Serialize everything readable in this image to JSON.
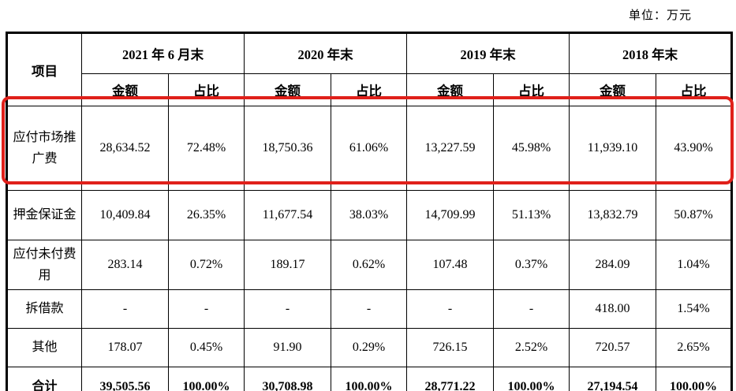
{
  "unit_label": "单位：万元",
  "highlight": {
    "color": "#e0201a",
    "highlighted_row": "应付市场推广费"
  },
  "table": {
    "item_header": "项目",
    "periods": [
      "2021 年 6 月末",
      "2020 年末",
      "2019 年末",
      "2018 年末"
    ],
    "sub_headers": [
      "金额",
      "占比"
    ],
    "rows": [
      {
        "label": "应付市场推广费",
        "highlighted": true,
        "bold": false,
        "values": [
          "28,634.52",
          "72.48%",
          "18,750.36",
          "61.06%",
          "13,227.59",
          "45.98%",
          "11,939.10",
          "43.90%"
        ]
      },
      {
        "label": "押金保证金",
        "highlighted": false,
        "bold": false,
        "values": [
          "10,409.84",
          "26.35%",
          "11,677.54",
          "38.03%",
          "14,709.99",
          "51.13%",
          "13,832.79",
          "50.87%"
        ]
      },
      {
        "label": "应付未付费用",
        "highlighted": false,
        "bold": false,
        "values": [
          "283.14",
          "0.72%",
          "189.17",
          "0.62%",
          "107.48",
          "0.37%",
          "284.09",
          "1.04%"
        ]
      },
      {
        "label": "拆借款",
        "highlighted": false,
        "bold": false,
        "values": [
          "-",
          "-",
          "-",
          "-",
          "-",
          "-",
          "418.00",
          "1.54%"
        ]
      },
      {
        "label": "其他",
        "highlighted": false,
        "bold": false,
        "values": [
          "178.07",
          "0.45%",
          "91.90",
          "0.29%",
          "726.15",
          "2.52%",
          "720.57",
          "2.65%"
        ]
      },
      {
        "label": "合计",
        "highlighted": false,
        "bold": true,
        "values": [
          "39,505.56",
          "100.00%",
          "30,708.98",
          "100.00%",
          "28,771.22",
          "100.00%",
          "27,194.54",
          "100.00%"
        ]
      }
    ]
  }
}
